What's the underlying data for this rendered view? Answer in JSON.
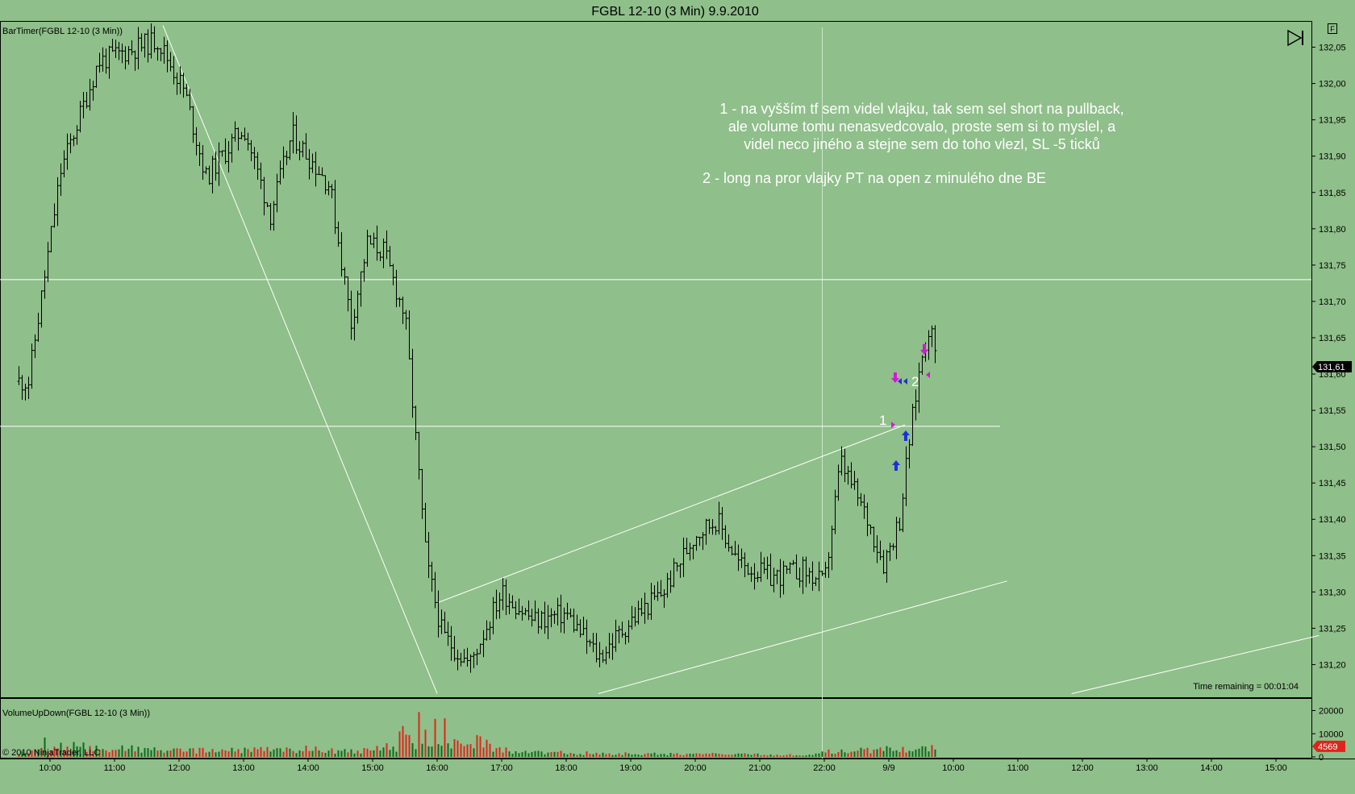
{
  "window": {
    "title": "FGBL 12-10 (3 Min)  9.9.2010"
  },
  "colors": {
    "background": "#8fbf8a",
    "bar": "#000000",
    "trendline": "#ffffff",
    "vol_up": "#0c6a1a",
    "vol_down": "#e0241b",
    "price_tag": "#000000",
    "vol_tag": "#e0241b",
    "marker_magenta": "#d21ad2",
    "marker_blue": "#1f2fd8"
  },
  "indicators": {
    "price_label": "BarTimer(FGBL 12-10 (3 Min))",
    "volume_label": "VolumeUpDown(FGBL 12-10 (3 Min))",
    "time_remaining": "Time remaining = 00:01:04",
    "copyright": "© 2010 NinjaTrader, LLC"
  },
  "icons": {
    "toolbar": "play-to-end-icon",
    "panel": "f-box-icon"
  },
  "annotations": {
    "lines": [
      "1 -  na vyšším tf sem videl vlajku, tak sem sel short na pullback,",
      "ale volume tomu nenasvedcovalo, proste sem si to myslel, a",
      "videl neco jiného a stejne sem do toho vlezl, SL -5 ticků",
      "2 - long na pror vlajky PT na open z minulého dne BE"
    ],
    "marker1": "1",
    "marker2": "2"
  },
  "chart_data": [
    {
      "type": "ohlc",
      "panel": "price",
      "x_axis": {
        "labels": [
          "10:00",
          "11:00",
          "12:00",
          "13:00",
          "14:00",
          "15:00",
          "16:00",
          "17:00",
          "18:00",
          "19:00",
          "20:00",
          "21:00",
          "22:00",
          "9/9",
          "10:00",
          "11:00",
          "12:00",
          "13:00",
          "14:00",
          "15:00"
        ]
      },
      "y_axis": {
        "ticks": [
          "132,05",
          "132,00",
          "131,95",
          "131,90",
          "131,85",
          "131,80",
          "131,75",
          "131,70",
          "131,65",
          "131,60",
          "131,55",
          "131,50",
          "131,45",
          "131,40",
          "131,35",
          "131,30",
          "131,25",
          "131,20"
        ],
        "range": [
          131.155,
          132.085
        ]
      },
      "last_price": "131,61",
      "waypoints": [
        {
          "time": "09:40",
          "price": 131.59
        },
        {
          "time": "10:10",
          "price": 131.88
        },
        {
          "time": "10:45",
          "price": 132.03
        },
        {
          "time": "11:40",
          "price": 132.06
        },
        {
          "time": "12:05",
          "price": 131.99
        },
        {
          "time": "12:25",
          "price": 131.87
        },
        {
          "time": "13:00",
          "price": 131.94
        },
        {
          "time": "13:25",
          "price": 131.82
        },
        {
          "time": "13:45",
          "price": 131.93
        },
        {
          "time": "14:20",
          "price": 131.86
        },
        {
          "time": "14:40",
          "price": 131.67
        },
        {
          "time": "14:55",
          "price": 131.78
        },
        {
          "time": "15:10",
          "price": 131.77
        },
        {
          "time": "15:30",
          "price": 131.68
        },
        {
          "time": "15:50",
          "price": 131.34
        },
        {
          "time": "16:05",
          "price": 131.24
        },
        {
          "time": "16:30",
          "price": 131.2
        },
        {
          "time": "17:00",
          "price": 131.3
        },
        {
          "time": "17:30",
          "price": 131.26
        },
        {
          "time": "18:00",
          "price": 131.27
        },
        {
          "time": "18:30",
          "price": 131.21
        },
        {
          "time": "19:00",
          "price": 131.26
        },
        {
          "time": "19:30",
          "price": 131.3
        },
        {
          "time": "20:00",
          "price": 131.38
        },
        {
          "time": "20:20",
          "price": 131.4
        },
        {
          "time": "20:40",
          "price": 131.34
        },
        {
          "time": "21:10",
          "price": 131.32
        },
        {
          "time": "21:40",
          "price": 131.33
        },
        {
          "time": "22:00",
          "price": 131.31
        },
        {
          "time": "22:15",
          "price": 131.48
        },
        {
          "time": "22:40",
          "price": 131.4
        },
        {
          "time": "22:55",
          "price": 131.34
        },
        {
          "time": "23:10",
          "price": 131.4
        },
        {
          "time": "23:20",
          "price": 131.52
        },
        {
          "time": "23:30",
          "price": 131.62
        },
        {
          "time": "23:38",
          "price": 131.67
        },
        {
          "time": "23:45",
          "price": 131.61
        }
      ],
      "horizontal_lines": [
        131.73,
        131.528
      ],
      "trendlines": [
        {
          "from": {
            "time": "11:45",
            "price": 132.08
          },
          "to": {
            "time": "16:00",
            "price": 131.16
          }
        },
        {
          "from": {
            "time": "16:00",
            "price": 131.285
          },
          "to": {
            "time": "23:15",
            "price": 131.53
          }
        },
        {
          "from": {
            "time": "18:30",
            "price": 131.16
          },
          "to": {
            "time": "24:50",
            "price": 131.315
          }
        },
        {
          "from": {
            "time": "25:50",
            "price": 131.16
          },
          "to": {
            "time": "29:40",
            "price": 131.24
          }
        }
      ]
    },
    {
      "type": "bar",
      "panel": "volume",
      "y_axis": {
        "ticks": [
          "20000",
          "10000",
          "0"
        ],
        "range": [
          0,
          24000
        ]
      },
      "last_volume": "4569",
      "profile": [
        {
          "time": "09:40",
          "up": 3000,
          "down": 2500
        },
        {
          "time": "10:00",
          "up": 9000,
          "down": 3500
        },
        {
          "time": "10:40",
          "up": 5000,
          "down": 4000
        },
        {
          "time": "12:00",
          "up": 3000,
          "down": 3000
        },
        {
          "time": "14:00",
          "up": 3500,
          "down": 4000
        },
        {
          "time": "15:00",
          "up": 2500,
          "down": 3000
        },
        {
          "time": "15:45",
          "up": 6000,
          "down": 20000
        },
        {
          "time": "16:15",
          "up": 5000,
          "down": 12000
        },
        {
          "time": "17:00",
          "up": 3000,
          "down": 3500
        },
        {
          "time": "18:00",
          "up": 1500,
          "down": 2000
        },
        {
          "time": "20:00",
          "up": 1500,
          "down": 1500
        },
        {
          "time": "21:50",
          "up": 900,
          "down": 900
        },
        {
          "time": "22:00",
          "up": 2500,
          "down": 2500
        },
        {
          "time": "23:30",
          "up": 4500,
          "down": 4500
        }
      ]
    }
  ]
}
